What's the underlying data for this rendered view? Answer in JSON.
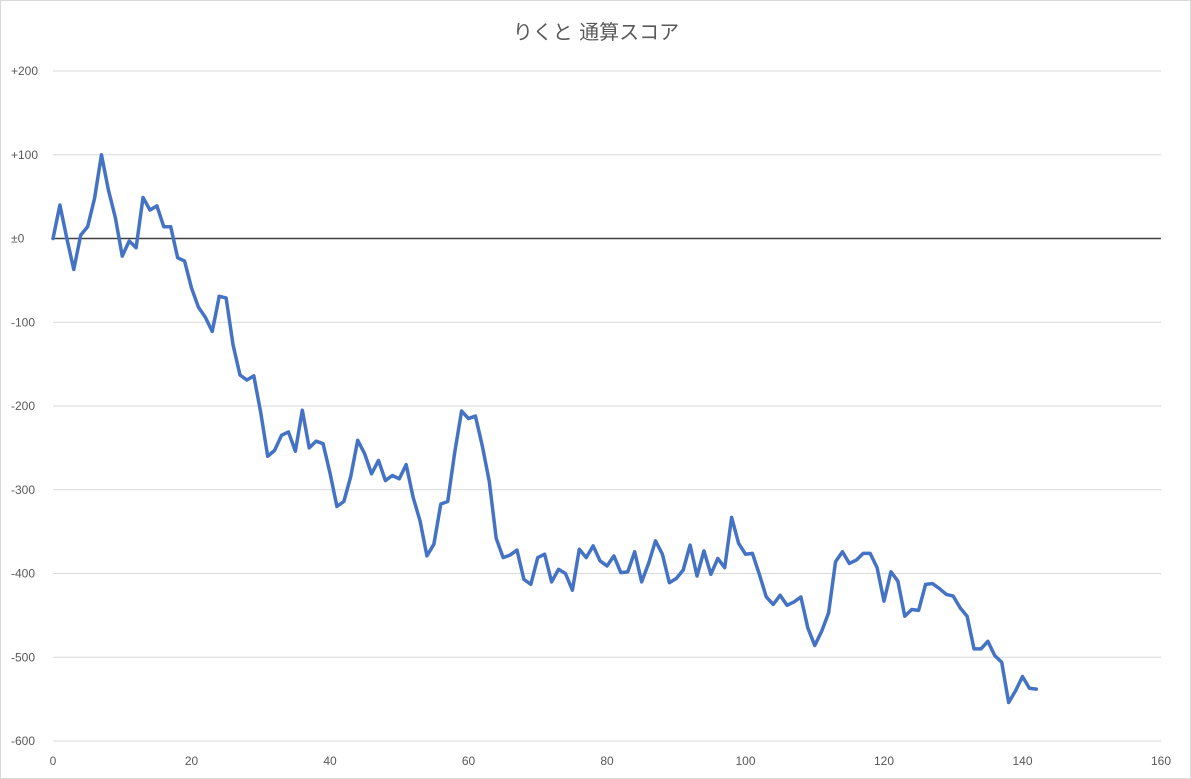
{
  "chart_data": {
    "type": "line",
    "title": "りくと 通算スコア",
    "xlabel": "",
    "ylabel": "",
    "xlim": [
      0,
      160
    ],
    "ylim": [
      -600,
      200
    ],
    "x_ticks": [
      "0",
      "20",
      "40",
      "60",
      "80",
      "100",
      "120",
      "140",
      "160"
    ],
    "y_ticks": [
      "+200",
      "+100",
      "±0",
      "-100",
      "-200",
      "-300",
      "-400",
      "-500",
      "-600"
    ],
    "grid": true,
    "legend": "none",
    "series": [
      {
        "color": "#4472c4",
        "x": [
          0,
          1,
          2,
          3,
          4,
          5,
          6,
          7,
          8,
          9,
          10,
          11,
          12,
          13,
          14,
          15,
          16,
          17,
          18,
          19,
          20,
          21,
          22,
          23,
          24,
          25,
          26,
          27,
          28,
          29,
          30,
          31,
          32,
          33,
          34,
          35,
          36,
          37,
          38,
          39,
          40,
          41,
          42,
          43,
          44,
          45,
          46,
          47,
          48,
          49,
          50,
          51,
          52,
          53,
          54,
          55,
          56,
          57,
          58,
          59,
          60,
          61,
          62,
          63,
          64,
          65,
          66,
          67,
          68,
          69,
          70,
          71,
          72,
          73,
          74,
          75,
          76,
          77,
          78,
          79,
          80,
          81,
          82,
          83,
          84,
          85,
          86,
          87,
          88,
          89,
          90,
          91,
          92,
          93,
          94,
          95,
          96,
          97,
          98,
          99,
          100,
          101,
          102,
          103,
          104,
          105,
          106,
          107,
          108,
          109,
          110,
          111,
          112,
          113,
          114,
          115,
          116,
          117,
          118,
          119,
          120,
          121,
          122,
          123,
          124,
          125,
          126,
          127,
          128,
          129,
          130,
          131,
          132,
          133,
          134,
          135,
          136,
          137,
          138,
          139,
          140,
          141,
          142
        ],
        "values": [
          0,
          40,
          0,
          -37,
          4,
          14,
          48,
          100,
          58,
          25,
          -21,
          -3,
          -11,
          49,
          34,
          39,
          14,
          14,
          -23,
          -27,
          -59,
          -82,
          -94,
          -111,
          -69,
          -71,
          -127,
          -163,
          -169,
          -164,
          -208,
          -260,
          -253,
          -235,
          -231,
          -254,
          -205,
          -250,
          -242,
          -245,
          -280,
          -320,
          -314,
          -284,
          -241,
          -257,
          -281,
          -265,
          -289,
          -283,
          -287,
          -270,
          -309,
          -337,
          -379,
          -365,
          -317,
          -314,
          -256,
          -206,
          -215,
          -212,
          -248,
          -290,
          -358,
          -381,
          -378,
          -372,
          -407,
          -413,
          -381,
          -377,
          -410,
          -395,
          -400,
          -420,
          -371,
          -381,
          -367,
          -385,
          -391,
          -379,
          -399,
          -398,
          -374,
          -410,
          -388,
          -361,
          -377,
          -411,
          -406,
          -396,
          -366,
          -403,
          -373,
          -401,
          -382,
          -393,
          -333,
          -364,
          -377,
          -376,
          -401,
          -428,
          -437,
          -426,
          -438,
          -434,
          -428,
          -465,
          -486,
          -469,
          -447,
          -386,
          -374,
          -388,
          -384,
          -376,
          -376,
          -393,
          -433,
          -398,
          -409,
          -451,
          -443,
          -444,
          -413,
          -412,
          -418,
          -425,
          -427,
          -441,
          -451,
          -490,
          -490,
          -481,
          -498,
          -506,
          -554,
          -540,
          -523,
          -537,
          -538
        ]
      }
    ]
  }
}
